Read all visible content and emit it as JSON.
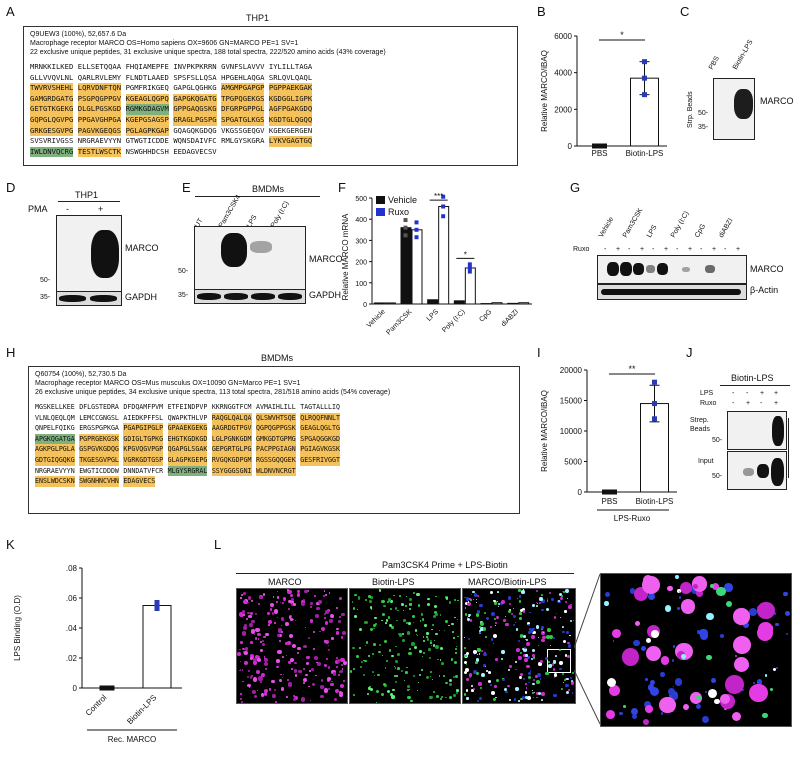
{
  "panels": {
    "A": "A",
    "B": "B",
    "C": "C",
    "D": "D",
    "E": "E",
    "F": "F",
    "G": "G",
    "H": "H",
    "I": "I",
    "J": "J",
    "K": "K",
    "L": "L"
  },
  "panelA": {
    "title": "THP1",
    "header": [
      "Q9UEW3 (100%), 52,657.6 Da",
      "Macrophage receptor MARCO OS=Homo sapiens OX=9606 GN=MARCO PE=1 SV=1",
      "22 exclusive unique peptides, 31 exclusive unique spectra, 188 total spectra, 222/520 amino acids (43% coverage)"
    ],
    "rows": [
      "MRNKKILKED ELLSETQQAA FHQIAMEPFE INVPKPKRRN GVNFSLAVVV IYLILLTAGA",
      "GLLVVQVLNL QARLRVLEMY FLNDTLAAED SPSFSLLQSA HPGEHLAQGA SRLQVLQAQL",
      "TWVRVSHEHL LQRVDNFTQN PGMFRIKGEQ GAPGLQGHKG AMGMPGAPGP PGPPAEKGAK",
      "GAMGRDGATG PSGPQGPPGV KGEAGLQGPQ GAPGKQGATG TPGPQGEKGS KGDGGLIGPK",
      "GETGTKGEKG DLGLPGSKGD RGMKGDAGVM GPPGAQGSKG DFGRPGPPGL AGFPGAKGDQ",
      "GQPGLQGVPG PPGAVGHPGA KGEPGSAGSP GRAGLPGSPG SPGATGLKGS KGDTGLQGQQ",
      "GRKGESGVPG PAGVKGEQGS PGLAGPKGAP GQAGQKGDQG VKGSSGEQGV KGEKGERGEN",
      "SVSVRIVGSS NRGRAEVYYN GTWGTICDDE WQNSDAIVFC RMLGYSKGRA LYKVGAGTGQ",
      "IWLDNVQCRG TESTLWSCTK NSWGHHDCSH EEDAGVECSV"
    ]
  },
  "panelB": {
    "ylabel": "Relative MARCO/iBAQ",
    "yticks": [
      "0",
      "2000",
      "4000",
      "6000"
    ],
    "sig": "*",
    "chart_data": {
      "type": "bar",
      "categories": [
        "PBS",
        "Biotin-LPS"
      ],
      "values": [
        0,
        3700
      ],
      "points": [
        [
          0,
          0,
          0
        ],
        [
          2800,
          4600,
          3700
        ]
      ],
      "errors": [
        0,
        900
      ],
      "ylim": [
        0,
        6000
      ]
    }
  },
  "panelC": {
    "sidelabel": "Strp. Beads",
    "lanes": [
      "PBS",
      "Biotin-LPS"
    ],
    "protein": "MARCO",
    "markers": [
      "50-",
      "35-"
    ]
  },
  "panelD": {
    "title": "THP1",
    "pma_label": "PMA",
    "pma_values": [
      "-",
      "+"
    ],
    "protein": "MARCO",
    "loading": "GAPDH",
    "markers": [
      "50-",
      "35-"
    ]
  },
  "panelE": {
    "title": "BMDMs",
    "lanes": [
      "UT",
      "Pam3CSK4",
      "LPS",
      "Poly (I:C)"
    ],
    "protein": "MARCO",
    "loading": "GAPDH",
    "markers": [
      "50-",
      "35-"
    ]
  },
  "panelF": {
    "ylabel": "Relative MARCO mRNA",
    "yticks": [
      "0",
      "100",
      "200",
      "300",
      "400",
      "500"
    ],
    "legend": [
      "Vehicle",
      "Ruxo"
    ],
    "sig": [
      "***",
      "*"
    ],
    "chart_data": {
      "type": "bar",
      "categories": [
        "Vehicle",
        "Pam3CSK",
        "LPS",
        "Poly (I:C)",
        "CpG",
        "diABZI"
      ],
      "series": [
        {
          "name": "Vehicle",
          "values": [
            5,
            360,
            20,
            15,
            2,
            3
          ],
          "color": "#111111"
        },
        {
          "name": "Ruxo",
          "values": [
            5,
            350,
            460,
            170,
            6,
            6
          ],
          "color": "#2233cc"
        }
      ],
      "ylim": [
        0,
        500
      ]
    }
  },
  "panelG": {
    "lanes": [
      "Vehicle",
      "Pam3CSK",
      "LPS",
      "Poly (I:C)",
      "CpG",
      "diABZI"
    ],
    "ruxo_label": "Ruxo",
    "ruxo_values": [
      "-",
      "+",
      "-",
      "+",
      "-",
      "+",
      "-",
      "+",
      "-",
      "+",
      "-",
      "+"
    ],
    "protein": "MARCO",
    "loading": "β-Actin"
  },
  "panelH": {
    "title": "BMDMs",
    "header": [
      "Q60754 (100%), 52,730.5 Da",
      "Macrophage receptor MARCO OS=Mus musculus OX=10090 GN=Marco PE=1 SV=1",
      "26 exclusive unique peptides, 34 exclusive unique spectra, 113 total spectra, 281/518 amino acids (54% coverage)"
    ],
    "rows": [
      "MGSKELLKEE DFLGSTEDRA DFDQAMFPVM ETFEINDPVP KKRNGGTFCM AVMAIHLILL TAGTALLLIQ",
      "VLNLQEQLQM LEMCCGNGSL AIEDKPFFSL QWAPKTHLVP RAQGLQALQA QLSWVHTSQE QLRQQFNNLT",
      "QNPELFQIKG ERGSPGPKGA PGAPGIPGLP GPAAEKGEKG AAGRDGTPGV QGPQGPPGSK GEAGLQGLTG",
      "APGKQGATGA PGPRGEKGSK GDIGLTGPKG EHGTKGDKGD LGLPGNKGDM GMKGDTGPMG SPGAQGGKGD",
      "AGKPGLPGLA GSPGVKGDQG KPGVQGVPGP QGAPGLSGAK GEPGRTGLPG PACPPGIAGN PGIAGVKGSK",
      "GDTGIQGQKG TKGESGVPGL VGRKGDTGSP GLAGPKGEPG RVGQKGDPGM RGSSGQQGEK GESFRIVGGT",
      "NRGRAEVYYN EWGTICDDDW DNNDATVFCR MLGYSRGRAL SSYGGGSGNI WLDNVNCRGT",
      "ENSLWDCSKN SWGNHNCVHN EDAGVECS"
    ]
  },
  "panelI": {
    "ylabel": "Relative MARCO/iBAQ",
    "yticks": [
      "0",
      "5000",
      "10000",
      "15000",
      "20000"
    ],
    "sig": "**",
    "group_label": "LPS-Ruxo",
    "chart_data": {
      "type": "bar",
      "categories": [
        "PBS",
        "Biotin-LPS"
      ],
      "values": [
        0,
        14500
      ],
      "points": [
        [
          0,
          0,
          0
        ],
        [
          12000,
          18000,
          14500
        ]
      ],
      "errors": [
        0,
        3000
      ],
      "ylim": [
        0,
        20000
      ]
    }
  },
  "panelJ": {
    "title": "Biotin-LPS",
    "row_labels": [
      "LPS",
      "Ruxo"
    ],
    "lps_values": [
      "-",
      "-",
      "+",
      "+"
    ],
    "ruxo_values": [
      "-",
      "+",
      "-",
      "+"
    ],
    "blot1": "Strep. Beads",
    "blot2": "Input",
    "markers": [
      "50-",
      "50-"
    ]
  },
  "panelK": {
    "ylabel": "LPS Binding (O.D)",
    "yticks": [
      "0",
      ".02",
      ".04",
      ".06",
      ".08"
    ],
    "group_label": "Rec. MARCO",
    "chart_data": {
      "type": "bar",
      "categories": [
        "Control",
        "Biotin-LPS"
      ],
      "values": [
        0,
        0.055
      ],
      "points": [
        [
          0,
          0,
          0
        ],
        [
          0.053,
          0.057,
          0.055
        ]
      ],
      "ylim": [
        0,
        0.08
      ]
    }
  },
  "panelL": {
    "title": "Pam3CSK4 Prime + LPS-Biotin",
    "images": [
      "MARCO",
      "Biotin-LPS",
      "MARCO/Biotin-LPS"
    ]
  }
}
